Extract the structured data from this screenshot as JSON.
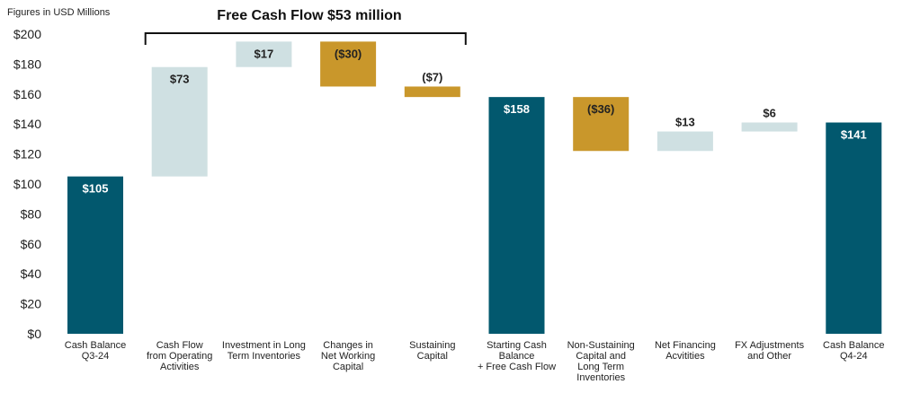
{
  "chart_data": {
    "type": "waterfall",
    "units_label": "Figures in USD Millions",
    "title": "Free Cash Flow $53 million",
    "ylim": [
      0,
      200
    ],
    "yticks": [
      "$0",
      "$20",
      "$40",
      "$60",
      "$80",
      "$100",
      "$120",
      "$140",
      "$160",
      "$180",
      "$200"
    ],
    "ytick_values": [
      0,
      20,
      40,
      60,
      80,
      100,
      120,
      140,
      160,
      180,
      200
    ],
    "colors": {
      "total": "#02586e",
      "increase": "#cfe0e2",
      "decrease": "#c9972b",
      "label_on_total": "#ffffff",
      "label_on_bar": "#222222"
    },
    "bracket": {
      "from_index": 1,
      "to_index": 4
    },
    "bars": [
      {
        "category": [
          "Cash Balance",
          "Q3-24"
        ],
        "kind": "total",
        "start": 0,
        "end": 105,
        "label": "$105",
        "label_pos": "inside"
      },
      {
        "category": [
          "Cash Flow",
          "from Operating",
          "Activities"
        ],
        "kind": "increase",
        "start": 105,
        "end": 178,
        "label": "$73",
        "label_pos": "inside"
      },
      {
        "category": [
          "Investment in Long",
          "Term Inventories"
        ],
        "kind": "increase",
        "start": 178,
        "end": 195,
        "label": "$17",
        "label_pos": "inside"
      },
      {
        "category": [
          "Changes in",
          "Net Working",
          "Capital"
        ],
        "kind": "decrease",
        "start": 195,
        "end": 165,
        "label": "($30)",
        "label_pos": "inside"
      },
      {
        "category": [
          "Sustaining",
          "Capital"
        ],
        "kind": "decrease",
        "start": 165,
        "end": 158,
        "label": "($7)",
        "label_pos": "above"
      },
      {
        "category": [
          "Starting Cash",
          "Balance",
          "+ Free Cash Flow"
        ],
        "kind": "total",
        "start": 0,
        "end": 158,
        "label": "$158",
        "label_pos": "inside"
      },
      {
        "category": [
          "Non-Sustaining",
          "Capital and",
          "Long Term",
          "Inventories"
        ],
        "kind": "decrease",
        "start": 158,
        "end": 122,
        "label": "($36)",
        "label_pos": "inside"
      },
      {
        "category": [
          "Net Financing",
          "Acvitities"
        ],
        "kind": "increase",
        "start": 122,
        "end": 135,
        "label": "$13",
        "label_pos": "above"
      },
      {
        "category": [
          "FX Adjustments",
          "and Other"
        ],
        "kind": "increase",
        "start": 135,
        "end": 141,
        "label": "$6",
        "label_pos": "above"
      },
      {
        "category": [
          "Cash Balance",
          "Q4-24"
        ],
        "kind": "total",
        "start": 0,
        "end": 141,
        "label": "$141",
        "label_pos": "inside"
      }
    ]
  }
}
